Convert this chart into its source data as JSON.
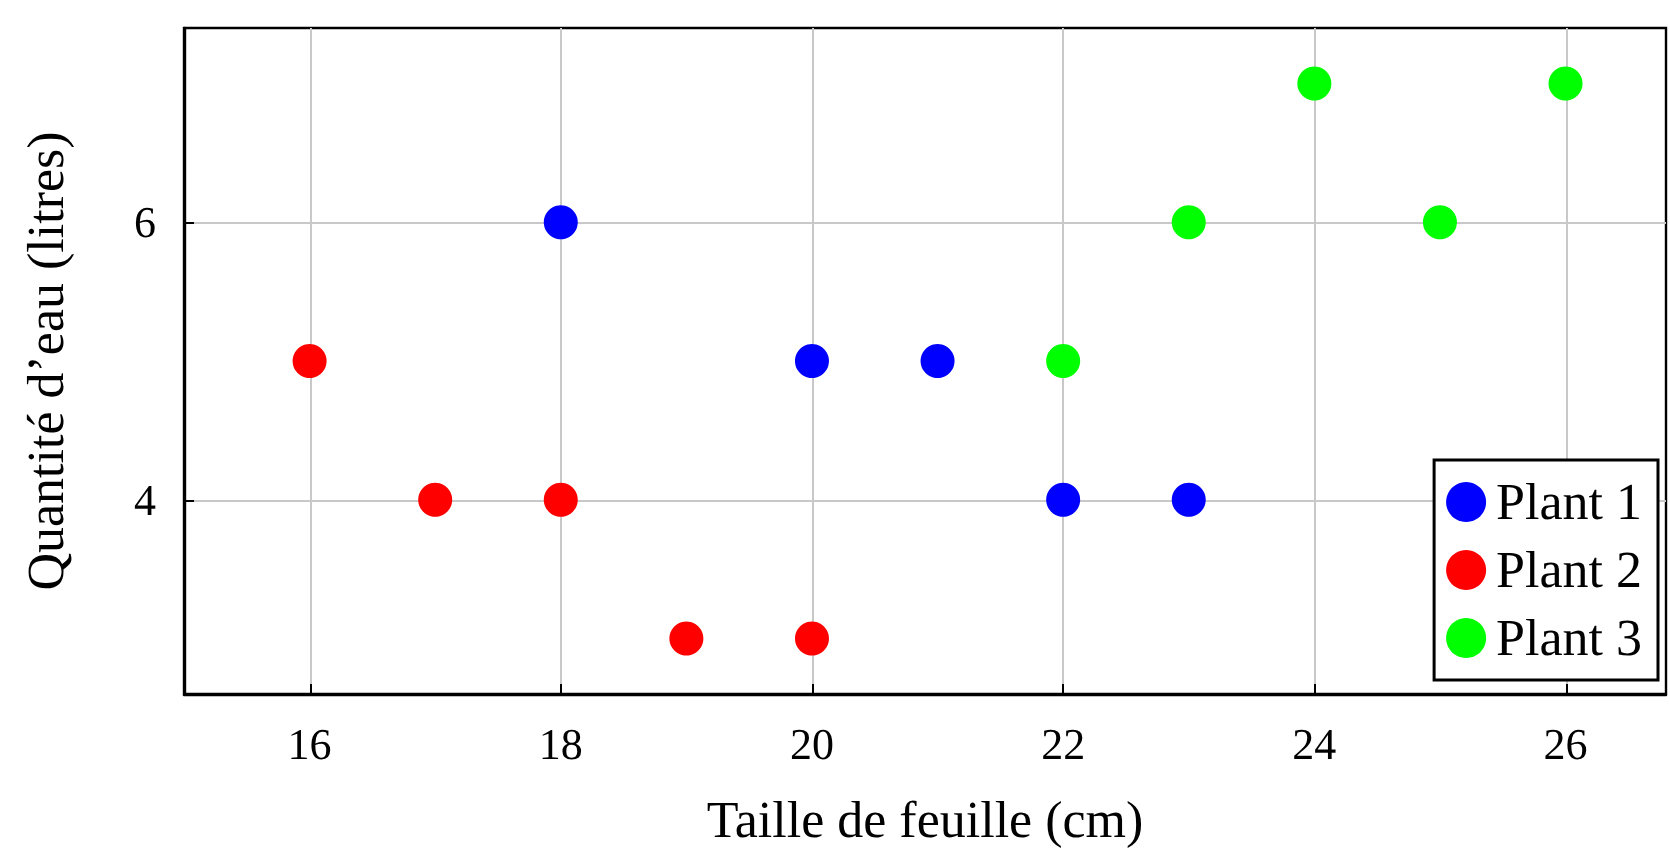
{
  "chart_data": {
    "type": "scatter",
    "xlabel": "Taille de feuille (cm)",
    "ylabel": "Quantité d’eau (litres)",
    "xlim": [
      15,
      26.8
    ],
    "xticks": [
      16,
      18,
      20,
      22,
      24,
      26
    ],
    "ylim": [
      2.6,
      7.4
    ],
    "yticks": [
      4,
      6
    ],
    "grid": true,
    "legend": "bottom right",
    "marker": "circle",
    "series": [
      {
        "name": "Plant 1",
        "color": "#0000ff",
        "x": [
          18,
          20,
          21,
          22,
          23
        ],
        "values": [
          6,
          5,
          5,
          4,
          4
        ]
      },
      {
        "name": "Plant 2",
        "color": "#ff0000",
        "x": [
          16,
          17,
          18,
          19,
          20
        ],
        "values": [
          5,
          4,
          4,
          3,
          3
        ]
      },
      {
        "name": "Plant 3",
        "color": "#00ff00",
        "x": [
          22,
          23,
          24,
          25,
          26
        ],
        "values": [
          5,
          6,
          7,
          6,
          7
        ]
      }
    ]
  }
}
